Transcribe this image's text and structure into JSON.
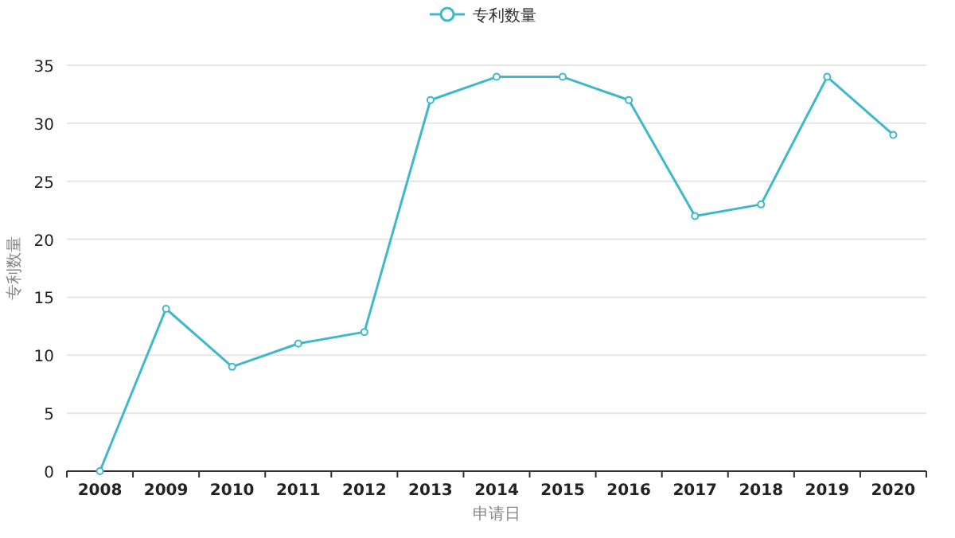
{
  "chart_data": {
    "type": "line",
    "xlabel": "申请日",
    "ylabel": "专利数量",
    "categories": [
      "2008",
      "2009",
      "2010",
      "2011",
      "2012",
      "2013",
      "2014",
      "2015",
      "2016",
      "2017",
      "2018",
      "2019",
      "2020"
    ],
    "series": [
      {
        "name": "专利数量",
        "color": "#3fb8c9",
        "values": [
          0,
          14,
          9,
          11,
          12,
          32,
          34,
          34,
          32,
          22,
          23,
          34,
          29
        ]
      }
    ],
    "ylim": [
      0,
      35
    ],
    "yticks": [
      0,
      5,
      10,
      15,
      20,
      25,
      30,
      35
    ],
    "grid": "y",
    "legend": "top",
    "marker": "circle",
    "line_style": "solid"
  }
}
